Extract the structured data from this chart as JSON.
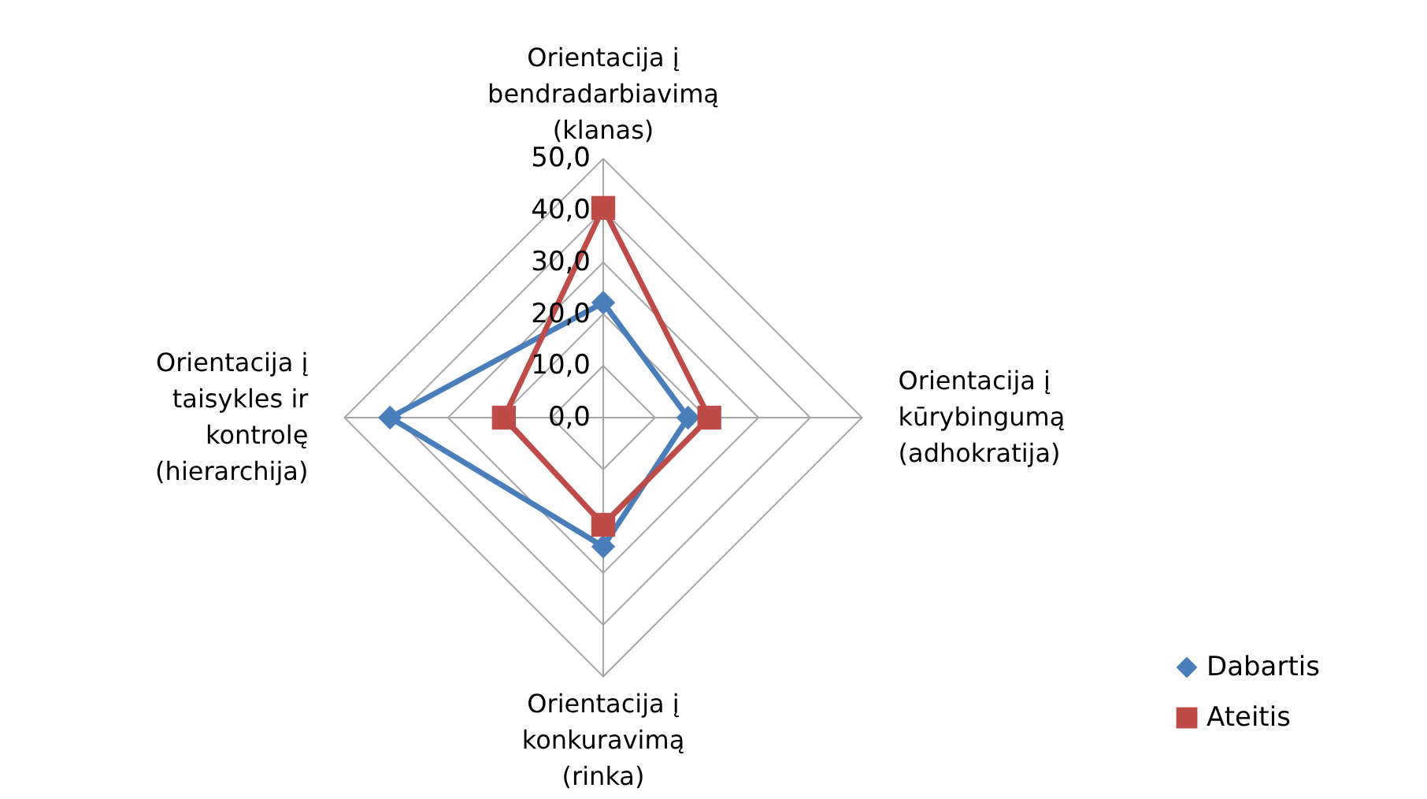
{
  "chart_data": {
    "type": "radar",
    "categories": [
      "Orientacija į\nbendradarbiavimą\n(klanas)",
      "Orientacija į\nkūrybingumą\n(adhokratija)",
      "Orientacija į\nkonkuravimą\n(rinka)",
      "Orientacija į\ntaisykles ir\nkontrolę\n(hierarchija)"
    ],
    "series": [
      {
        "name": "Dabartis",
        "color": "#4a7ebb",
        "marker": "diamond",
        "values": [
          22.2,
          16.4,
          24.9,
          41.2
        ]
      },
      {
        "name": "Ateitis",
        "color": "#be4b48",
        "marker": "square",
        "values": [
          40.5,
          20.5,
          20.7,
          19.2
        ]
      }
    ],
    "ylim": [
      0,
      50
    ],
    "yticks": [
      {
        "value": 0,
        "label": "0,0"
      },
      {
        "value": 10,
        "label": "10,0"
      },
      {
        "value": 20,
        "label": "20,0"
      },
      {
        "value": 30,
        "label": "30,0"
      },
      {
        "value": 40,
        "label": "40,0"
      },
      {
        "value": 50,
        "label": "50,0"
      }
    ],
    "grid": true,
    "legend": "bottom right"
  }
}
